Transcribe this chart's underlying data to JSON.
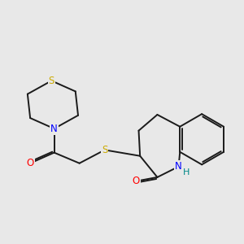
{
  "bg_color": "#e8e8e8",
  "bond_color": "#1a1a1a",
  "bond_width": 1.4,
  "atom_colors": {
    "S": "#ccaa00",
    "N": "#0000ff",
    "O": "#ff0000",
    "H_color": "#008888",
    "C": "#1a1a1a"
  },
  "font_size_atom": 8.5
}
